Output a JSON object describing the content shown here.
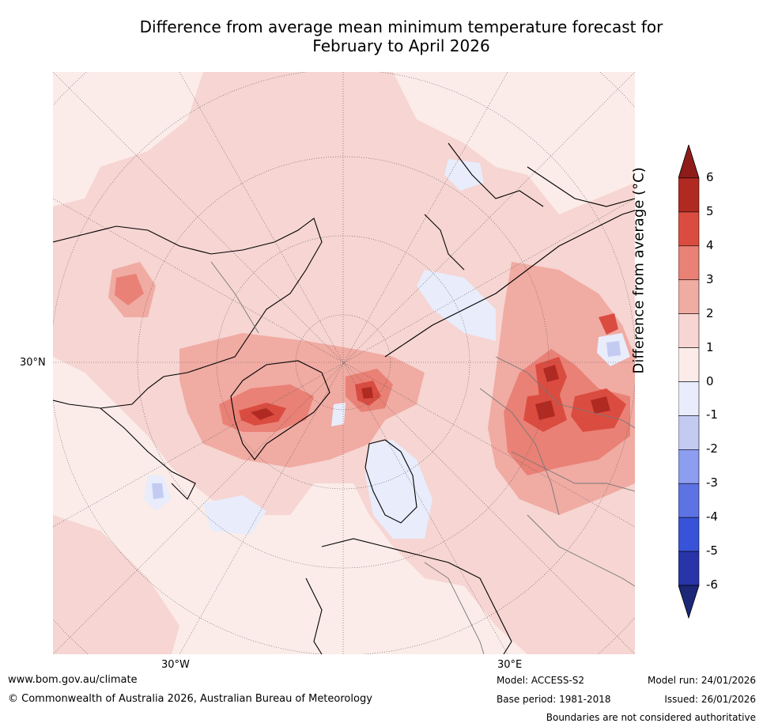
{
  "title_line1": "Difference from average mean minimum temperature forecast for",
  "title_line2": "February to April 2026",
  "map": {
    "lat_label": "30°N",
    "lon_labels": [
      "30°W",
      "30°E"
    ]
  },
  "colorbar": {
    "label": "Difference from average (°C)",
    "ticks": [
      "6",
      "5",
      "4",
      "3",
      "2",
      "1",
      "0",
      "-1",
      "-2",
      "-3",
      "-4",
      "-5",
      "-6"
    ],
    "colors": [
      "#8e1d1a",
      "#b12a22",
      "#db4c40",
      "#e98176",
      "#f0aba3",
      "#f6d5d2",
      "#fbece9",
      "#e8ecfb",
      "#c3cbf2",
      "#8d9df0",
      "#5d73e4",
      "#3853d7",
      "#2834a8",
      "#1d2778"
    ]
  },
  "footer": {
    "website": "www.bom.gov.au/climate",
    "copyright": "© Commonwealth of Australia 2026, Australian Bureau of Meteorology",
    "model": "Model: ACCESS-S2",
    "base_period": "Base period: 1981-2018",
    "model_run": "Model run: 24/01/2026",
    "issued": "Issued: 26/01/2026",
    "disclaimer": "Boundaries are not considered authoritative"
  }
}
